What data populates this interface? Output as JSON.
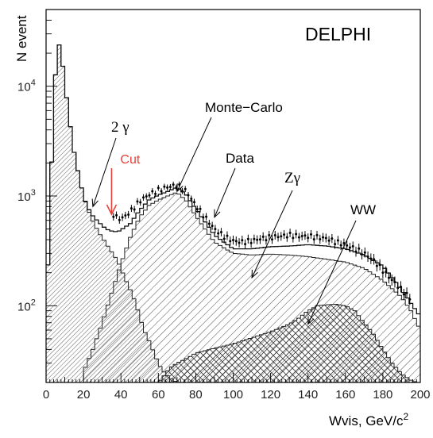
{
  "chart_data": {
    "type": "histogram",
    "title": "DELPHI",
    "xlabel": "Wvis, GeV/c",
    "xlabel_sup": "2",
    "ylabel": "N event",
    "xlim": [
      0,
      200
    ],
    "ylim": [
      20,
      50000
    ],
    "y_scale": "log",
    "grid": false,
    "x_ticks": [
      0,
      20,
      40,
      60,
      80,
      100,
      120,
      140,
      160,
      180,
      200
    ],
    "y_tick_labels": [
      {
        "base": "10",
        "exp": "2",
        "value": 100
      },
      {
        "base": "10",
        "exp": "3",
        "value": 1000
      },
      {
        "base": "10",
        "exp": "4",
        "value": 10000
      }
    ],
    "colors": {
      "cut": "#e8413b",
      "data_points": "#000000",
      "hatch": "#333333"
    },
    "cut": {
      "label": "Cut",
      "x": 35
    },
    "annotations": [
      {
        "label": "2 γ",
        "target": [
          25,
          800
        ]
      },
      {
        "label": "Monte−Carlo",
        "target": [
          70,
          1100
        ]
      },
      {
        "label": "Data",
        "target": [
          90,
          640
        ]
      },
      {
        "label": "Zγ",
        "target": [
          110,
          180
        ]
      },
      {
        "label": "WW",
        "target": [
          140,
          68
        ]
      }
    ],
    "series": [
      {
        "name": "2 γ",
        "x": [
          0,
          4,
          6,
          8,
          10,
          12,
          15,
          18,
          20,
          22,
          25,
          28,
          30,
          32,
          35,
          38,
          40,
          42,
          45,
          48,
          50,
          52,
          55,
          58,
          60,
          62,
          65,
          68,
          70
        ],
        "values": [
          80,
          6000,
          27000,
          21000,
          11000,
          5600,
          2500,
          1400,
          1000,
          780,
          590,
          470,
          420,
          370,
          310,
          260,
          220,
          180,
          140,
          105,
          80,
          62,
          48,
          36,
          30,
          26,
          23,
          21,
          20
        ]
      },
      {
        "name": "Zγ",
        "x": [
          20,
          25,
          30,
          35,
          40,
          45,
          50,
          55,
          60,
          65,
          70,
          75,
          80,
          85,
          90,
          100,
          110,
          120,
          130,
          140,
          150,
          160,
          170,
          180,
          190,
          195,
          200
        ],
        "values": [
          25,
          40,
          70,
          130,
          240,
          420,
          640,
          820,
          920,
          1000,
          1080,
          900,
          660,
          500,
          380,
          300,
          290,
          295,
          290,
          280,
          265,
          250,
          220,
          170,
          120,
          90,
          60
        ]
      },
      {
        "name": "WW",
        "x": [
          60,
          63,
          66,
          70,
          75,
          80,
          90,
          100,
          110,
          120,
          130,
          135,
          140,
          145,
          150,
          155,
          160,
          165,
          170,
          175,
          180,
          185,
          190,
          195,
          198
        ],
        "values": [
          20,
          23,
          27,
          30,
          33,
          37,
          41,
          45,
          51,
          58,
          68,
          77,
          90,
          100,
          102,
          103,
          100,
          90,
          70,
          55,
          40,
          30,
          24,
          21,
          20
        ]
      },
      {
        "name": "Monte-Carlo",
        "x": [
          0,
          4,
          6,
          8,
          10,
          12,
          15,
          18,
          20,
          22,
          25,
          28,
          30,
          32,
          35,
          38,
          40,
          45,
          50,
          55,
          60,
          65,
          70,
          75,
          80,
          85,
          90,
          95,
          100,
          110,
          120,
          130,
          140,
          150,
          160,
          170,
          180,
          185,
          190,
          195,
          200
        ],
        "values": [
          80,
          6000,
          27000,
          21000,
          11000,
          5600,
          2500,
          1400,
          1000,
          800,
          660,
          580,
          540,
          500,
          480,
          470,
          490,
          560,
          740,
          920,
          1020,
          1100,
          1200,
          1020,
          760,
          580,
          440,
          380,
          330,
          330,
          345,
          350,
          360,
          350,
          330,
          290,
          230,
          180,
          140,
          105,
          80
        ]
      },
      {
        "name": "Data",
        "x": [
          36,
          38,
          40,
          42,
          45,
          48,
          50,
          55,
          60,
          65,
          70,
          75,
          80,
          85,
          90,
          95,
          100,
          105,
          110,
          115,
          120,
          125,
          130,
          135,
          140,
          145,
          150,
          155,
          160,
          165,
          170,
          175,
          180,
          185,
          190,
          195
        ],
        "values": [
          680,
          630,
          620,
          650,
          720,
          820,
          900,
          1030,
          1130,
          1210,
          1250,
          1100,
          820,
          640,
          500,
          430,
          390,
          380,
          390,
          410,
          420,
          430,
          440,
          430,
          430,
          420,
          410,
          380,
          360,
          330,
          300,
          260,
          210,
          170,
          140,
          115
        ]
      }
    ]
  }
}
